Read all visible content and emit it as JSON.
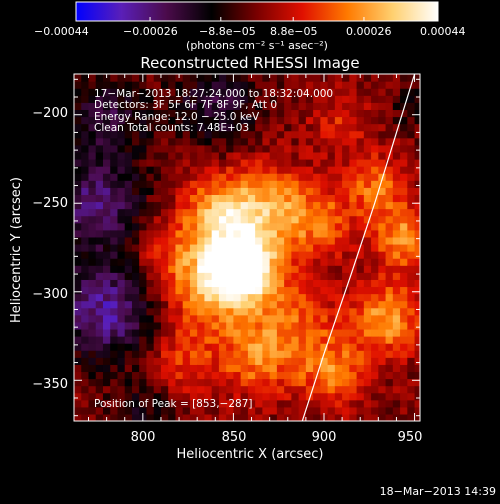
{
  "colorbar": {
    "tick_labels": [
      "−0.00044",
      "−0.00026",
      "−8.8e−05",
      "8.8e−05",
      "0.00026",
      "0.00044"
    ],
    "values": [
      -0.00044,
      -0.00026,
      -8.8e-05,
      8.8e-05,
      0.00026,
      0.00044
    ],
    "unit_label": "(photons cm⁻² s⁻¹ asec⁻²)",
    "range": [
      -0.00044,
      0.00044
    ],
    "colors": [
      "#0000ff",
      "#5a1fb8",
      "#4b0b4b",
      "#000000",
      "#7a0000",
      "#e01000",
      "#ff7a00",
      "#ffd070",
      "#ffffff"
    ]
  },
  "chart_data": {
    "type": "heatmap",
    "title": "Reconstructed RHESSI Image",
    "xlabel": "Heliocentric X (arcsec)",
    "ylabel": "Heliocentric Y (arcsec)",
    "xlim": [
      762,
      953
    ],
    "ylim": [
      -373,
      -177
    ],
    "x_ticks": [
      800,
      850,
      900,
      950
    ],
    "y_ticks": [
      -350,
      -300,
      -250,
      -200
    ],
    "peak": {
      "x": 853,
      "y": -287
    },
    "limb_curve": [
      [
        888,
        -373
      ],
      [
        900,
        -335
      ],
      [
        915,
        -290
      ],
      [
        928,
        -250
      ],
      [
        940,
        -210
      ],
      [
        950,
        -177
      ]
    ],
    "sources": [
      {
        "x": 853,
        "y": -287,
        "amp": 0.00044,
        "sigma": 12
      },
      {
        "x": 855,
        "y": -270,
        "amp": 0.0002,
        "sigma": 22
      },
      {
        "x": 835,
        "y": -300,
        "amp": 0.00022,
        "sigma": 18
      },
      {
        "x": 870,
        "y": -250,
        "amp": 0.00018,
        "sigma": 16
      },
      {
        "x": 840,
        "y": -255,
        "amp": 0.00018,
        "sigma": 14
      },
      {
        "x": 880,
        "y": -320,
        "amp": 0.00018,
        "sigma": 18
      },
      {
        "x": 905,
        "y": -345,
        "amp": 0.0002,
        "sigma": 14
      },
      {
        "x": 935,
        "y": -315,
        "amp": 0.00026,
        "sigma": 14
      },
      {
        "x": 945,
        "y": -270,
        "amp": 0.00026,
        "sigma": 12
      },
      {
        "x": 930,
        "y": -240,
        "amp": 0.0002,
        "sigma": 12
      },
      {
        "x": 900,
        "y": -260,
        "amp": 0.00016,
        "sigma": 14
      },
      {
        "x": 820,
        "y": -340,
        "amp": 0.00014,
        "sigma": 14
      },
      {
        "x": 810,
        "y": -280,
        "amp": 0.0001,
        "sigma": 14
      },
      {
        "x": 910,
        "y": -205,
        "amp": 0.00012,
        "sigma": 12
      },
      {
        "x": 860,
        "y": -340,
        "amp": 0.00016,
        "sigma": 14
      },
      {
        "x": 775,
        "y": -250,
        "amp": -0.00026,
        "sigma": 18
      },
      {
        "x": 780,
        "y": -310,
        "amp": -0.0003,
        "sigma": 20
      },
      {
        "x": 780,
        "y": -200,
        "amp": -0.00018,
        "sigma": 16
      },
      {
        "x": 840,
        "y": -195,
        "amp": -0.00018,
        "sigma": 16
      },
      {
        "x": 800,
        "y": -365,
        "amp": -0.00012,
        "sigma": 12
      },
      {
        "x": 950,
        "y": -195,
        "amp": -0.0001,
        "sigma": 10
      }
    ],
    "annotations": [
      "17−Mar−2013 18:27:24.000 to 18:32:04.000",
      "Detectors: 3F 5F 6F 7F 8F 9F, Att 0",
      "Energy Range: 12.0 − 25.0 keV",
      "Clean     Total counts: 7.48E+03"
    ],
    "peak_label": "Position of Peak = [853,−287]"
  },
  "timestamp": "18−Mar−2013 14:39"
}
